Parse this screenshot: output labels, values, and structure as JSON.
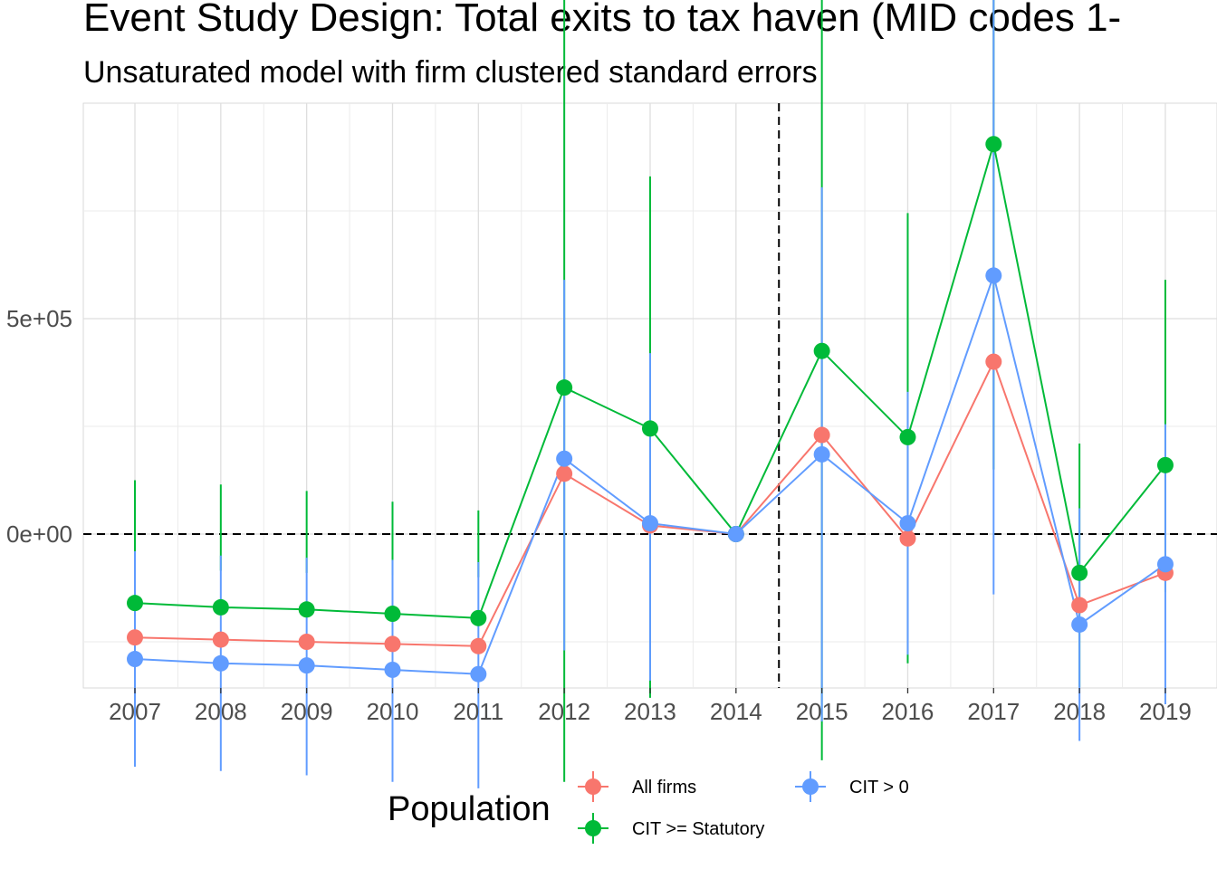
{
  "chart_data": {
    "type": "line",
    "title": "Event Study Design: Total exits to tax haven (MID codes 1-",
    "subtitle": "Unsaturated model with firm clustered standard errors",
    "xlabel": "",
    "ylabel": "",
    "categories": [
      "2007",
      "2008",
      "2009",
      "2010",
      "2011",
      "2012",
      "2013",
      "2014",
      "2015",
      "2016",
      "2017",
      "2018",
      "2019"
    ],
    "y_ticks": [
      {
        "value": 500000,
        "label": "5e+05"
      },
      {
        "value": 0,
        "label": "0e+00"
      }
    ],
    "ylim": [
      -715000,
      1000000
    ],
    "reference_lines": {
      "horizontal_at": 0,
      "vertical_between": [
        "2014",
        "2015"
      ]
    },
    "grid": true,
    "legend_title": "Population",
    "legend_position": "bottom",
    "series": [
      {
        "name": "All firms",
        "color": "#F8766D",
        "values": [
          -240000,
          -245000,
          -250000,
          -255000,
          -260000,
          140000,
          20000,
          0,
          230000,
          -10000,
          400000,
          -165000,
          -90000
        ],
        "lower": [
          null,
          null,
          null,
          null,
          null,
          null,
          null,
          null,
          null,
          null,
          null,
          null,
          null
        ],
        "upper": [
          null,
          null,
          null,
          null,
          null,
          null,
          null,
          null,
          null,
          null,
          null,
          null,
          null
        ]
      },
      {
        "name": "CIT >= Statutory",
        "color": "#00BA38",
        "values": [
          -160000,
          -170000,
          -175000,
          -185000,
          -195000,
          340000,
          245000,
          0,
          425000,
          225000,
          905000,
          -90000,
          160000
        ],
        "lower": [
          -80000,
          -85000,
          -90000,
          -95000,
          -100000,
          -575000,
          -380000,
          0,
          -525000,
          -300000,
          150000,
          -355000,
          -135000
        ],
        "upper": [
          125000,
          115000,
          100000,
          75000,
          55000,
          1265000,
          830000,
          0,
          1375000,
          745000,
          1880000,
          210000,
          590000
        ]
      },
      {
        "name": "CIT > 0",
        "color": "#619CFF",
        "values": [
          -290000,
          -300000,
          -305000,
          -315000,
          -325000,
          175000,
          25000,
          0,
          185000,
          25000,
          600000,
          -210000,
          -70000
        ],
        "lower": [
          -540000,
          -550000,
          -560000,
          -575000,
          -590000,
          -270000,
          -340000,
          0,
          -435000,
          -280000,
          -140000,
          -480000,
          -395000
        ],
        "upper": [
          -40000,
          -50000,
          -55000,
          -60000,
          -65000,
          590000,
          420000,
          0,
          805000,
          330000,
          1350000,
          60000,
          255000
        ]
      }
    ]
  }
}
